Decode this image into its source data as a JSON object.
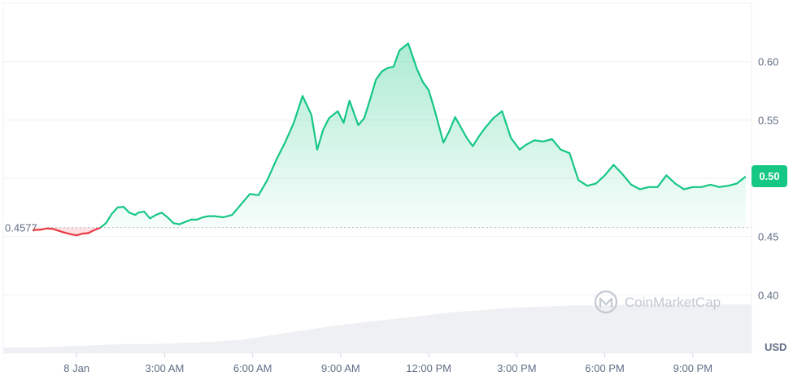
{
  "chart_data": {
    "type": "line",
    "title": "",
    "xlabel": "",
    "ylabel": "",
    "y_unit": "USD",
    "ylim": [
      0.35,
      0.65
    ],
    "y_ticks": [
      0.4,
      0.45,
      0.5,
      0.55,
      0.6
    ],
    "y_tick_labels": [
      "0.40",
      "0.45",
      "0.50",
      "0.55",
      "0.60"
    ],
    "x_range_hours": [
      -2.5,
      23.0
    ],
    "x_ticks": [
      {
        "hour": 0,
        "label": "8 Jan"
      },
      {
        "hour": 3,
        "label": "3:00 AM"
      },
      {
        "hour": 6,
        "label": "6:00 AM"
      },
      {
        "hour": 9,
        "label": "9:00 AM"
      },
      {
        "hour": 12,
        "label": "12:00 PM"
      },
      {
        "hour": 15,
        "label": "3:00 PM"
      },
      {
        "hour": 18,
        "label": "6:00 PM"
      },
      {
        "hour": 21,
        "label": "9:00 PM"
      }
    ],
    "reference_price": 0.4577,
    "reference_label": "0.4577",
    "current_price_label": "0.50",
    "grid": true,
    "colors": {
      "up": "#16c784",
      "down": "#ea3943",
      "grid": "#eff2f5",
      "text": "#616e85",
      "reference": "#b8bec7",
      "volume": "#eef0f3"
    },
    "series": [
      {
        "x": [
          -1.5,
          -1.2,
          -1.0,
          -0.8,
          -0.5,
          -0.2,
          0.0,
          0.2,
          0.4,
          0.6,
          0.8,
          1.0,
          1.2,
          1.4,
          1.6,
          1.8,
          2.0,
          2.1,
          2.3,
          2.5,
          2.7,
          2.9,
          3.1,
          3.3,
          3.5,
          3.7,
          3.9,
          4.1,
          4.3,
          4.5,
          4.7,
          5.0,
          5.3,
          5.6,
          5.9,
          6.2,
          6.5,
          6.8,
          7.1,
          7.4,
          7.7,
          8.0,
          8.2,
          8.4,
          8.6,
          8.9,
          9.1,
          9.3,
          9.6,
          9.8,
          10.0,
          10.2,
          10.4,
          10.6,
          10.8,
          11.0,
          11.3,
          11.6,
          11.8,
          12.0,
          12.2,
          12.5,
          12.7,
          12.9,
          13.1,
          13.3,
          13.5,
          13.7,
          13.9,
          14.2,
          14.5,
          14.8,
          15.1,
          15.3,
          15.6,
          15.9,
          16.2,
          16.5,
          16.8,
          17.1,
          17.4,
          17.7,
          18.0,
          18.3,
          18.6,
          18.9,
          19.2,
          19.5,
          19.8,
          20.1,
          20.4,
          20.7,
          21.0,
          21.3,
          21.6,
          21.9,
          22.2,
          22.5,
          22.8
        ],
        "values": [
          0.4555,
          0.456,
          0.457,
          0.4565,
          0.454,
          0.452,
          0.451,
          0.4525,
          0.453,
          0.4555,
          0.4575,
          0.4615,
          0.4695,
          0.475,
          0.4755,
          0.4705,
          0.4685,
          0.4705,
          0.4715,
          0.4655,
          0.4685,
          0.4705,
          0.4665,
          0.4615,
          0.4605,
          0.4625,
          0.4645,
          0.4645,
          0.4665,
          0.4675,
          0.4675,
          0.4665,
          0.4685,
          0.4775,
          0.4865,
          0.4855,
          0.4985,
          0.5155,
          0.5305,
          0.5475,
          0.5705,
          0.5545,
          0.5245,
          0.5415,
          0.5515,
          0.5575,
          0.5475,
          0.5665,
          0.5455,
          0.5515,
          0.5675,
          0.5845,
          0.5915,
          0.5945,
          0.5955,
          0.6095,
          0.6155,
          0.5935,
          0.5825,
          0.5755,
          0.5585,
          0.5305,
          0.5405,
          0.5525,
          0.5435,
          0.5345,
          0.5275,
          0.5355,
          0.5425,
          0.5515,
          0.5575,
          0.5345,
          0.5245,
          0.5285,
          0.5325,
          0.5315,
          0.5335,
          0.5245,
          0.5215,
          0.4985,
          0.4935,
          0.4955,
          0.5025,
          0.5115,
          0.5035,
          0.4945,
          0.4905,
          0.4925,
          0.4925,
          0.5025,
          0.4955,
          0.4905,
          0.4925,
          0.4925,
          0.4945,
          0.4925,
          0.4935,
          0.4955,
          0.5015
        ]
      }
    ],
    "volume_relative": [
      0.05,
      0.05,
      0.06,
      0.07,
      0.08,
      0.08,
      0.09,
      0.1,
      0.12,
      0.16,
      0.2,
      0.24,
      0.27,
      0.3,
      0.33,
      0.36,
      0.38,
      0.4,
      0.41,
      0.42,
      0.42,
      0.43,
      0.43,
      0.43,
      0.43,
      0.43
    ],
    "watermark": "CoinMarketCap"
  }
}
